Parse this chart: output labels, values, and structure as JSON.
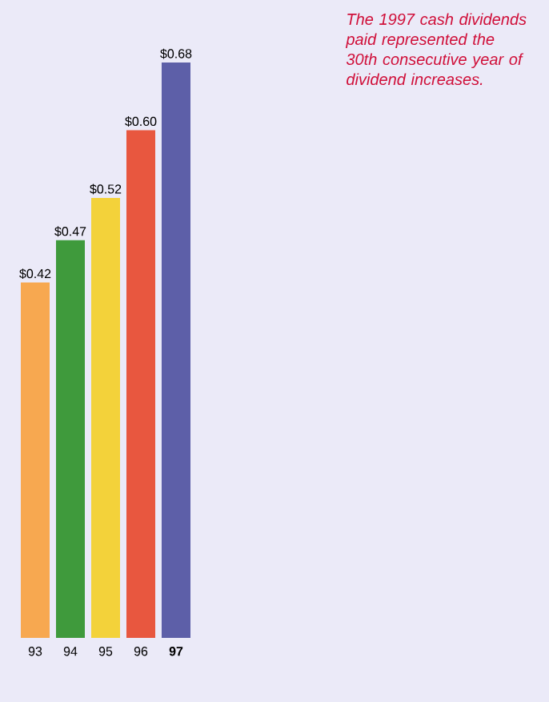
{
  "chart_data": {
    "type": "bar",
    "categories": [
      "93",
      "94",
      "95",
      "96",
      "97"
    ],
    "values": [
      0.42,
      0.47,
      0.52,
      0.6,
      0.68
    ],
    "value_labels": [
      "$0.42",
      "$0.47",
      "$0.52",
      "$0.60",
      "$0.68"
    ],
    "colors": [
      "#f7a850",
      "#3f9a3c",
      "#f3d23a",
      "#e8573f",
      "#5d5fa8"
    ],
    "annotations": [
      "The 1997 cash dividends paid represented the 30th consecutive year of dividend increases."
    ]
  }
}
